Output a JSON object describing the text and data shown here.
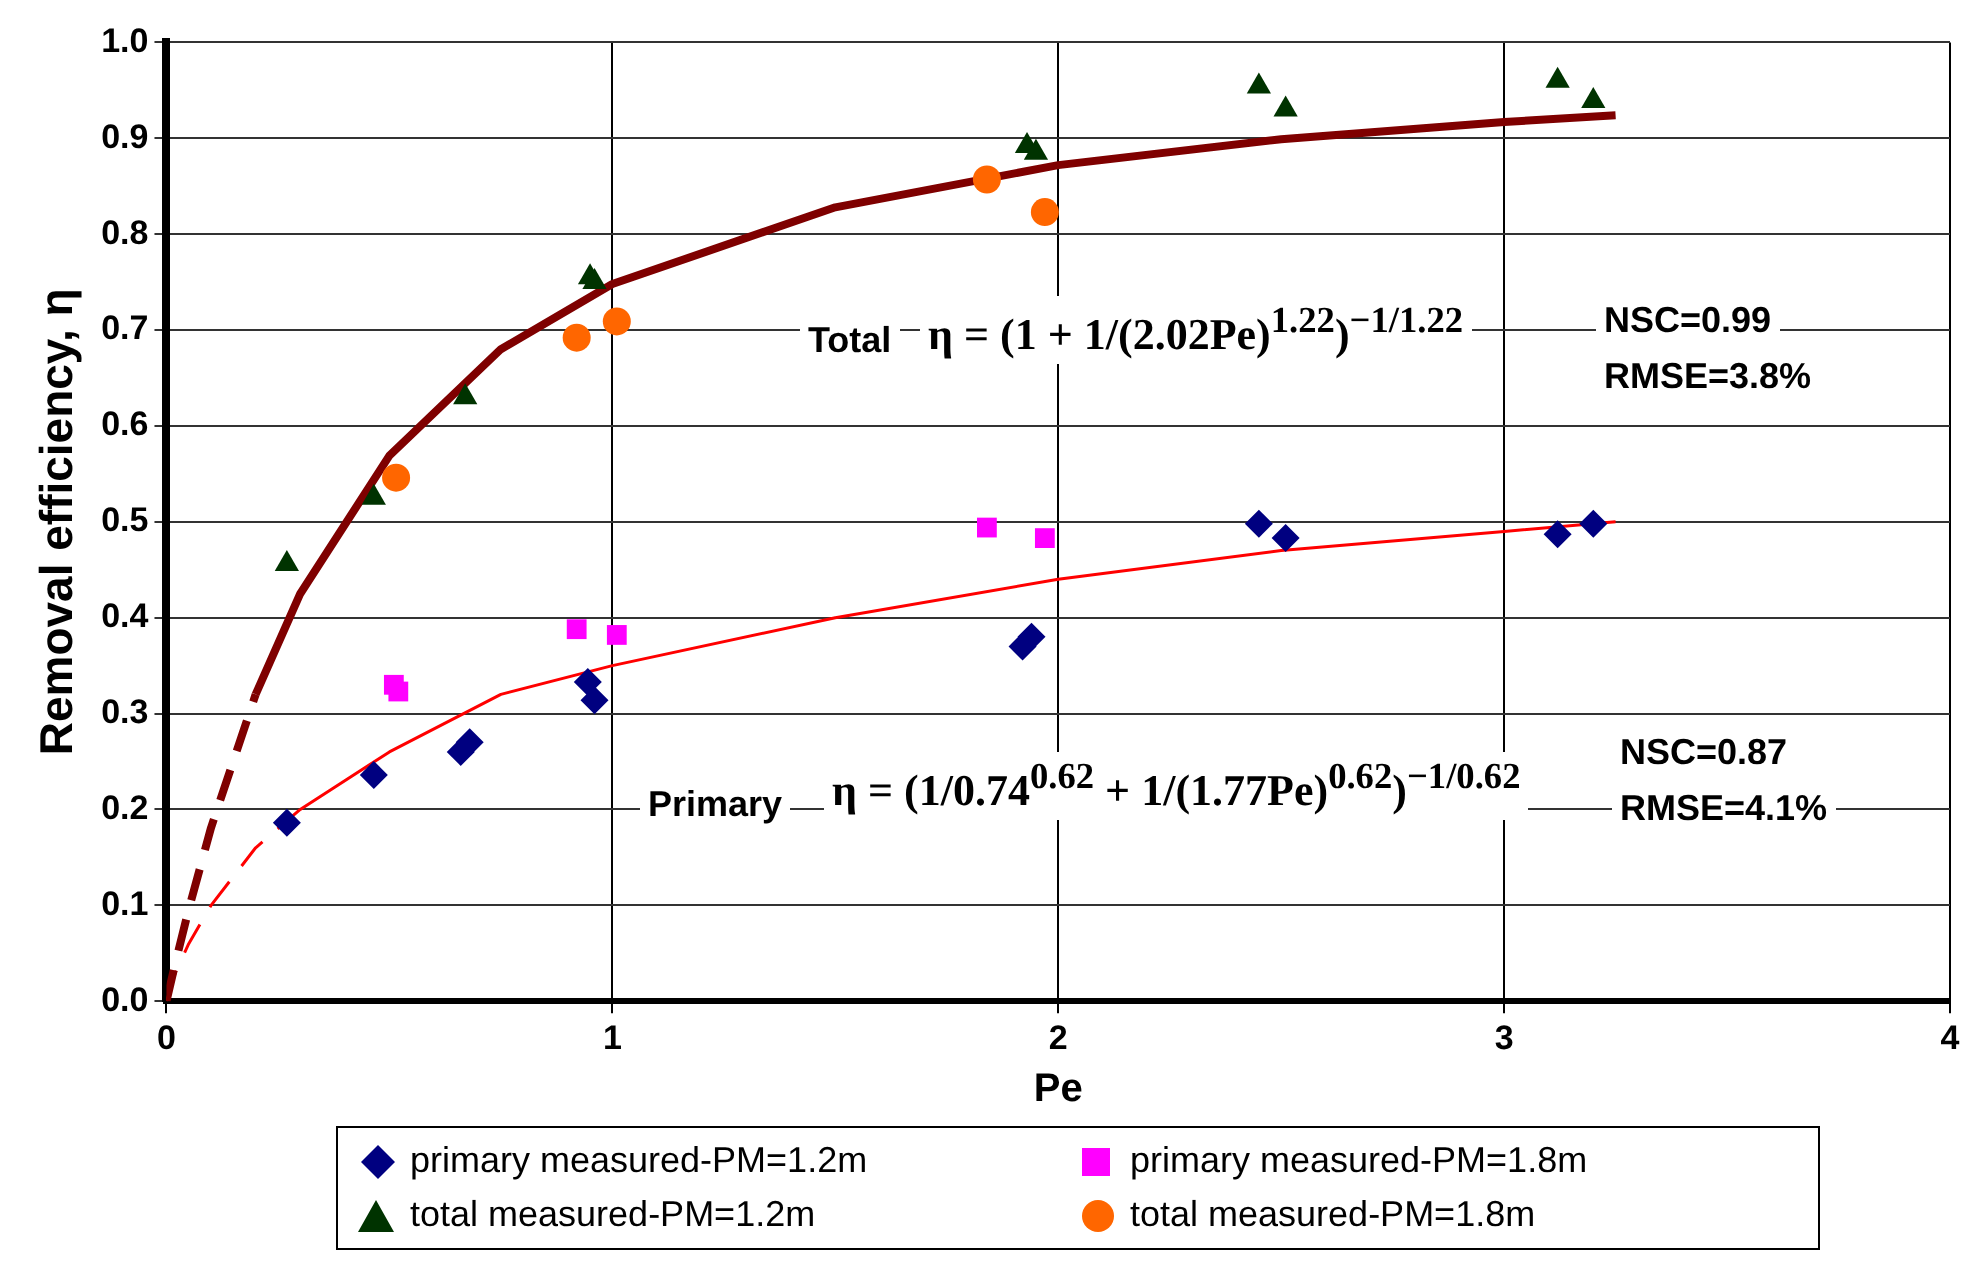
{
  "chart_data": {
    "type": "scatter",
    "xlabel": "Pe",
    "ylabel": "Removal efficiency, η",
    "xlim": [
      0,
      4
    ],
    "xticks": [
      0,
      1,
      2,
      3,
      4
    ],
    "ylim": [
      0,
      1
    ],
    "yticks": [
      {
        "value": 0,
        "label": "0.0"
      },
      {
        "value": 0.1,
        "label": "0.1"
      },
      {
        "value": 0.2,
        "label": "0.2"
      },
      {
        "value": 0.3,
        "label": "0.3"
      },
      {
        "value": 0.4,
        "label": "0.4"
      },
      {
        "value": 0.5,
        "label": "0.5"
      },
      {
        "value": 0.6,
        "label": "0.6"
      },
      {
        "value": 0.7,
        "label": "0.7"
      },
      {
        "value": 0.8,
        "label": "0.8"
      },
      {
        "value": 0.9,
        "label": "0.9"
      },
      {
        "value": 1,
        "label": "1.0"
      }
    ],
    "grid": true,
    "legend": "bottom",
    "annotations": [
      "Total",
      "η = (1 + 1/(2.02Pe)$^{1.22}$)$^{−1/1.22}$",
      "NSC=0.99",
      "RMSE=3.8%",
      "Primary",
      "η = (1/0.74$^{0.62}$ + 1/(1.77Pe)$^{0.62}$)$^{−1/0.62}$",
      "NSC=0.87",
      "RMSE=4.1%"
    ],
    "series": [
      {
        "name": "primary measured-PM=1.2m",
        "marker": "diamond",
        "color": "#000080",
        "x": [
          0.27,
          0.465,
          0.66,
          0.68,
          0.945,
          0.96,
          1.92,
          1.94,
          2.45,
          2.51,
          3.12,
          3.2
        ],
        "values": [
          0.186,
          0.236,
          0.26,
          0.27,
          0.333,
          0.314,
          0.37,
          0.38,
          0.498,
          0.483,
          0.487,
          0.498
        ]
      },
      {
        "name": "primary measured-PM=1.8m",
        "marker": "square",
        "color": "#ff00ff",
        "x": [
          0.51,
          0.52,
          0.92,
          1.01,
          1.84,
          1.97
        ],
        "values": [
          0.33,
          0.323,
          0.388,
          0.382,
          0.494,
          0.483
        ]
      },
      {
        "name": "total measured-PM=1.2m",
        "marker": "triangle",
        "color": "#003300",
        "x": [
          0.27,
          0.465,
          0.67,
          0.95,
          0.96,
          1.93,
          1.95,
          2.45,
          2.51,
          3.12,
          3.2
        ],
        "values": [
          0.456,
          0.525,
          0.63,
          0.755,
          0.75,
          0.892,
          0.885,
          0.954,
          0.93,
          0.96,
          0.939
        ]
      },
      {
        "name": "total measured-PM=1.8m",
        "marker": "circle",
        "color": "#ff6600",
        "x": [
          0.515,
          0.92,
          1.01,
          1.84,
          1.97
        ],
        "values": [
          0.546,
          0.692,
          0.709,
          0.857,
          0.823
        ]
      },
      {
        "type": "line",
        "marker": "none",
        "line_style": "dashed",
        "color": "#7f0000",
        "x": [
          0,
          0.02,
          0.05,
          0.1,
          0.2
        ],
        "values": [
          0,
          0.04,
          0.096,
          0.181,
          0.32
        ]
      },
      {
        "type": "line",
        "marker": "none",
        "line_style": "solid",
        "color": "#7f0000",
        "x": [
          0.2,
          0.3,
          0.5,
          0.75,
          1,
          1.5,
          2,
          2.5,
          3,
          3.25
        ],
        "values": [
          0.32,
          0.425,
          0.569,
          0.68,
          0.748,
          0.828,
          0.872,
          0.899,
          0.917,
          0.924
        ]
      },
      {
        "type": "line",
        "marker": "none",
        "line_style": "dashed",
        "color": "#ff0000",
        "x": [
          0,
          0.02,
          0.05,
          0.1,
          0.2,
          0.3
        ],
        "values": [
          0,
          0.03,
          0.06,
          0.1,
          0.16,
          0.2
        ]
      },
      {
        "type": "line",
        "marker": "none",
        "line_style": "solid",
        "color": "#ff0000",
        "x": [
          0.3,
          0.5,
          0.75,
          1,
          1.5,
          2,
          2.5,
          3,
          3.25
        ],
        "values": [
          0.2,
          0.26,
          0.32,
          0.35,
          0.4,
          0.44,
          0.47,
          0.49,
          0.5
        ]
      }
    ]
  }
}
